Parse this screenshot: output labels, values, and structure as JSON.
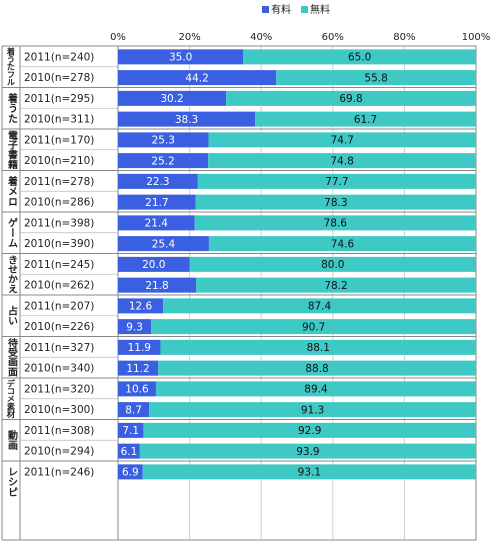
{
  "chart_data": {
    "type": "bar",
    "stacked": true,
    "orientation": "horizontal",
    "xlim": [
      0,
      100
    ],
    "x_ticks": [
      "0%",
      "20%",
      "40%",
      "60%",
      "80%",
      "100%"
    ],
    "grid": true,
    "legend": {
      "position": "top-center",
      "entries": [
        "有料",
        "無料"
      ]
    },
    "series_colors": [
      "#3a5fe0",
      "#3ec9c4"
    ],
    "groups": [
      {
        "label": "着うたフル",
        "rows": [
          {
            "label": "2011(n=240)",
            "paid": 35.0,
            "free": 65.0,
            "paid_label": "35.0",
            "free_label": "65.0"
          },
          {
            "label": "2010(n=278)",
            "paid": 44.2,
            "free": 55.8,
            "paid_label": "44.2",
            "free_label": "55.8"
          }
        ]
      },
      {
        "label": "着うた",
        "rows": [
          {
            "label": "2011(n=295)",
            "paid": 30.2,
            "free": 69.8,
            "paid_label": "30.2",
            "free_label": "69.8"
          },
          {
            "label": "2010(n=311)",
            "paid": 38.3,
            "free": 61.7,
            "paid_label": "38.3",
            "free_label": "61.7"
          }
        ]
      },
      {
        "label": "電子書籍",
        "rows": [
          {
            "label": "2011(n=170)",
            "paid": 25.3,
            "free": 74.7,
            "paid_label": "25.3",
            "free_label": "74.7"
          },
          {
            "label": "2010(n=210)",
            "paid": 25.2,
            "free": 74.8,
            "paid_label": "25.2",
            "free_label": "74.8"
          }
        ]
      },
      {
        "label": "着メロ",
        "rows": [
          {
            "label": "2011(n=278)",
            "paid": 22.3,
            "free": 77.7,
            "paid_label": "22.3",
            "free_label": "77.7"
          },
          {
            "label": "2010(n=286)",
            "paid": 21.7,
            "free": 78.3,
            "paid_label": "21.7",
            "free_label": "78.3"
          }
        ]
      },
      {
        "label": "ゲーム",
        "rows": [
          {
            "label": "2011(n=398)",
            "paid": 21.4,
            "free": 78.6,
            "paid_label": "21.4",
            "free_label": "78.6"
          },
          {
            "label": "2010(n=390)",
            "paid": 25.4,
            "free": 74.6,
            "paid_label": "25.4",
            "free_label": "74.6"
          }
        ]
      },
      {
        "label": "きせかえ",
        "rows": [
          {
            "label": "2011(n=245)",
            "paid": 20.0,
            "free": 80.0,
            "paid_label": "20.0",
            "free_label": "80.0"
          },
          {
            "label": "2010(n=262)",
            "paid": 21.8,
            "free": 78.2,
            "paid_label": "21.8",
            "free_label": "78.2"
          }
        ]
      },
      {
        "label": "占い",
        "rows": [
          {
            "label": "2011(n=207)",
            "paid": 12.6,
            "free": 87.4,
            "paid_label": "12.6",
            "free_label": "87.4"
          },
          {
            "label": "2010(n=226)",
            "paid": 9.3,
            "free": 90.7,
            "paid_label": "9.3",
            "free_label": "90.7"
          }
        ]
      },
      {
        "label": "待受画面",
        "rows": [
          {
            "label": "2011(n=327)",
            "paid": 11.9,
            "free": 88.1,
            "paid_label": "11.9",
            "free_label": "88.1"
          },
          {
            "label": "2010(n=340)",
            "paid": 11.2,
            "free": 88.8,
            "paid_label": "11.2",
            "free_label": "88.8"
          }
        ]
      },
      {
        "label": "デコメ素材",
        "rows": [
          {
            "label": "2011(n=320)",
            "paid": 10.6,
            "free": 89.4,
            "paid_label": "10.6",
            "free_label": "89.4"
          },
          {
            "label": "2010(n=300)",
            "paid": 8.7,
            "free": 91.3,
            "paid_label": "8.7",
            "free_label": "91.3"
          }
        ]
      },
      {
        "label": "動画",
        "rows": [
          {
            "label": "2011(n=308)",
            "paid": 7.1,
            "free": 92.9,
            "paid_label": "7.1",
            "free_label": "92.9"
          },
          {
            "label": "2010(n=294)",
            "paid": 6.1,
            "free": 93.9,
            "paid_label": "6.1",
            "free_label": "93.9"
          }
        ]
      },
      {
        "label": "レシピ",
        "rows": [
          {
            "label": "2011(n=246)",
            "paid": 6.9,
            "free": 93.1,
            "paid_label": "6.9",
            "free_label": "93.1"
          }
        ]
      }
    ]
  }
}
